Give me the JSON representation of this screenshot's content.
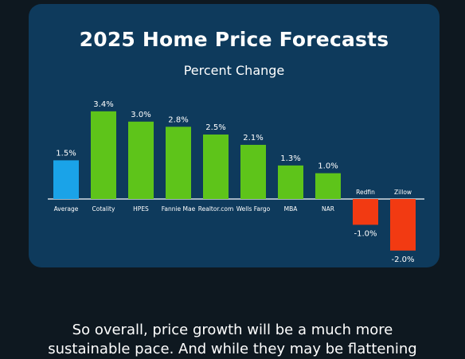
{
  "chart_data": {
    "type": "bar",
    "title": "2025 Home Price Forecasts",
    "subtitle": "Percent Change",
    "categories": [
      "Average",
      "Cotality",
      "HPES",
      "Fannie Mae",
      "Realtor.com",
      "Wells Fargo",
      "MBA",
      "NAR",
      "Redfin",
      "Zillow"
    ],
    "values": [
      1.5,
      3.4,
      3.0,
      2.8,
      2.5,
      2.1,
      1.3,
      1.0,
      -1.0,
      -2.0
    ],
    "value_labels": [
      "1.5%",
      "3.4%",
      "3.0%",
      "2.8%",
      "2.5%",
      "2.1%",
      "1.3%",
      "1.0%",
      "-1.0%",
      "-2.0%"
    ],
    "ylim": [
      -2.0,
      3.4
    ],
    "grid": false,
    "colors": {
      "average": "#1aa3e8",
      "positive": "#5ec41a",
      "negative": "#f23a12",
      "baseline": "#ffffff"
    }
  },
  "caption": {
    "line1": "So overall, price growth will be a much more",
    "line2": "sustainable pace. And while they may be flattening"
  }
}
